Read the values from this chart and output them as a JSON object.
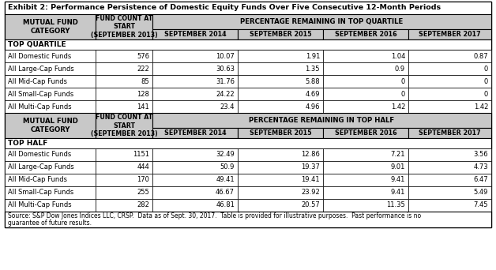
{
  "title": "Exhibit 2: Performance Persistence of Domestic Equity Funds Over Five Consecutive 12-Month Periods",
  "source_line1": "Source: S&P Dow Jones Indices LLC, CRSP.  Data as of Sept. 30, 2017.  Table is provided for illustrative purposes.  Past performance is no",
  "source_line2": "guarantee of future results.",
  "section1_label": "TOP QUARTILE",
  "section2_label": "TOP HALF",
  "header_col0": "MUTUAL FUND\nCATEGORY",
  "header_col1": "FUND COUNT AT\nSTART\n(SEPTEMBER 2013)",
  "header_merged_q": "PERCENTAGE REMAINING IN TOP QUARTILE",
  "header_merged_h": "PERCENTAGE REMAINING IN TOP HALF",
  "sub_headers": [
    "SEPTEMBER 2014",
    "SEPTEMBER 2015",
    "SEPTEMBER 2016",
    "SEPTEMBER 2017"
  ],
  "quartile_rows": [
    [
      "All Domestic Funds",
      "576",
      "10.07",
      "1.91",
      "1.04",
      "0.87"
    ],
    [
      "All Large-Cap Funds",
      "222",
      "30.63",
      "1.35",
      "0.9",
      "0"
    ],
    [
      "All Mid-Cap Funds",
      "85",
      "31.76",
      "5.88",
      "0",
      "0"
    ],
    [
      "All Small-Cap Funds",
      "128",
      "24.22",
      "4.69",
      "0",
      "0"
    ],
    [
      "All Multi-Cap Funds",
      "141",
      "23.4",
      "4.96",
      "1.42",
      "1.42"
    ]
  ],
  "half_rows": [
    [
      "All Domestic Funds",
      "1151",
      "32.49",
      "12.86",
      "7.21",
      "3.56"
    ],
    [
      "All Large-Cap Funds",
      "444",
      "50.9",
      "19.37",
      "9.01",
      "4.73"
    ],
    [
      "All Mid-Cap Funds",
      "170",
      "49.41",
      "19.41",
      "9.41",
      "6.47"
    ],
    [
      "All Small-Cap Funds",
      "255",
      "46.67",
      "23.92",
      "9.41",
      "5.49"
    ],
    [
      "All Multi-Cap Funds",
      "282",
      "46.81",
      "20.57",
      "11.35",
      "7.45"
    ]
  ],
  "header_bg": "#c8c8c8",
  "white_bg": "#ffffff",
  "border_color": "#000000",
  "title_fs": 6.8,
  "header_fs": 6.2,
  "subheader_fs": 5.8,
  "data_fs": 6.5,
  "source_fs": 5.5
}
